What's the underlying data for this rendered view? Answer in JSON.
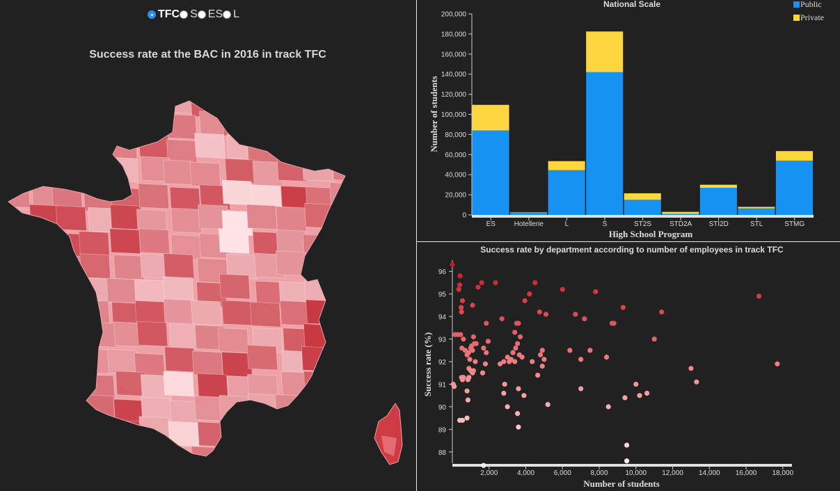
{
  "track_selector": {
    "options": [
      {
        "label": "TFC",
        "selected": true
      },
      {
        "label": "S",
        "selected": false
      },
      {
        "label": "ES",
        "selected": false
      },
      {
        "label": "L",
        "selected": false
      }
    ]
  },
  "map": {
    "title": "Success rate at the BAC in 2016 in track TFC",
    "color_scale": {
      "low": "#ffe6e9",
      "high": "#be1a25"
    }
  },
  "chart_data": [
    {
      "type": "bar",
      "stacked": true,
      "title": "National Scale",
      "xlabel": "High School Program",
      "ylabel": "Number of students",
      "ylim": [
        0,
        200000
      ],
      "yticks": [
        "0",
        "20,000",
        "40,000",
        "60,000",
        "80,000",
        "100,000",
        "120,000",
        "140,000",
        "160,000",
        "180,000",
        "200,000"
      ],
      "categories": [
        "ES",
        "Hotellerie",
        "L",
        "S",
        "ST2S",
        "STD2A",
        "STI2D",
        "STL",
        "STMG"
      ],
      "series": [
        {
          "name": "Public",
          "color": "#1692f3",
          "values": [
            84000,
            2000,
            44500,
            142000,
            15000,
            1000,
            27000,
            6500,
            54000
          ]
        },
        {
          "name": "Private",
          "color": "#fed640",
          "values": [
            25500,
            500,
            9000,
            40500,
            6500,
            2000,
            3000,
            1500,
            9500
          ]
        }
      ],
      "legend_position": "top-right"
    },
    {
      "type": "scatter",
      "title": "Success rate by department according to number of employees in track TFC",
      "xlabel": "Number of students",
      "ylabel": "Success rate (%)",
      "xlim": [
        0,
        18500
      ],
      "ylim": [
        87.5,
        96.5
      ],
      "xticks": [
        "2,000",
        "4,000",
        "6,000",
        "8,000",
        "10,000",
        "12,000",
        "14,000",
        "16,000",
        "18,000"
      ],
      "yticks": [
        "88",
        "89",
        "90",
        "91",
        "92",
        "93",
        "94",
        "95",
        "96"
      ],
      "points": [
        [
          0,
          96.3
        ],
        [
          350,
          95.2
        ],
        [
          400,
          95.4
        ],
        [
          420,
          95.8
        ],
        [
          480,
          94.4
        ],
        [
          500,
          94.2
        ],
        [
          550,
          94.7
        ],
        [
          300,
          93.2
        ],
        [
          150,
          93.2
        ],
        [
          450,
          93.2
        ],
        [
          600,
          93.0
        ],
        [
          520,
          92.6
        ],
        [
          700,
          92.5
        ],
        [
          800,
          92.3
        ],
        [
          880,
          92.4
        ],
        [
          950,
          92.1
        ],
        [
          1000,
          92.6
        ],
        [
          1050,
          92.7
        ],
        [
          1200,
          92.8
        ],
        [
          1300,
          92.8
        ],
        [
          1150,
          93.1
        ],
        [
          1100,
          92.5
        ],
        [
          1250,
          92.0
        ],
        [
          900,
          91.7
        ],
        [
          1000,
          91.6
        ],
        [
          1100,
          91.5
        ],
        [
          1150,
          91.6
        ],
        [
          900,
          91.3
        ],
        [
          850,
          91.2
        ],
        [
          600,
          91.3
        ],
        [
          550,
          91.2
        ],
        [
          500,
          91.3
        ],
        [
          100,
          90.9
        ],
        [
          50,
          91.0
        ],
        [
          800,
          90.7
        ],
        [
          850,
          90.3
        ],
        [
          400,
          89.4
        ],
        [
          550,
          89.4
        ],
        [
          800,
          89.5
        ],
        [
          1600,
          95.5
        ],
        [
          1400,
          95.3
        ],
        [
          1100,
          94.5
        ],
        [
          1850,
          93.7
        ],
        [
          1950,
          92.9
        ],
        [
          1850,
          92.4
        ],
        [
          1700,
          92.6
        ],
        [
          1800,
          91.9
        ],
        [
          1650,
          91.5
        ],
        [
          2350,
          95.5
        ],
        [
          2700,
          93.9
        ],
        [
          2600,
          91.9
        ],
        [
          2850,
          91.0
        ],
        [
          2800,
          90.6
        ],
        [
          3000,
          90.0
        ],
        [
          2800,
          92.0
        ],
        [
          3100,
          92.0
        ],
        [
          3000,
          92.2
        ],
        [
          3300,
          92.4
        ],
        [
          3450,
          92.6
        ],
        [
          3500,
          93.7
        ],
        [
          3600,
          93.7
        ],
        [
          3400,
          93.3
        ],
        [
          3700,
          93.1
        ],
        [
          3550,
          92.8
        ],
        [
          3650,
          92.3
        ],
        [
          3800,
          92.2
        ],
        [
          3200,
          92.1
        ],
        [
          3400,
          92.0
        ],
        [
          3600,
          90.8
        ],
        [
          3900,
          90.5
        ],
        [
          3550,
          89.7
        ],
        [
          3600,
          89.1
        ],
        [
          3950,
          94.7
        ],
        [
          4200,
          95.0
        ],
        [
          4500,
          95.5
        ],
        [
          4750,
          94.2
        ],
        [
          5100,
          94.1
        ],
        [
          4350,
          92.0
        ],
        [
          4650,
          91.4
        ],
        [
          4800,
          92.3
        ],
        [
          4900,
          92.5
        ],
        [
          5000,
          92.1
        ],
        [
          4900,
          91.8
        ],
        [
          5200,
          90.1
        ],
        [
          6000,
          95.2
        ],
        [
          6700,
          94.1
        ],
        [
          6400,
          92.5
        ],
        [
          7000,
          92.1
        ],
        [
          7000,
          90.8
        ],
        [
          7200,
          93.9
        ],
        [
          7500,
          92.5
        ],
        [
          7800,
          95.1
        ],
        [
          8400,
          92.2
        ],
        [
          8700,
          93.7
        ],
        [
          8800,
          93.7
        ],
        [
          8500,
          90.0
        ],
        [
          9300,
          94.4
        ],
        [
          9400,
          90.4
        ],
        [
          9500,
          88.3
        ],
        [
          9500,
          87.6
        ],
        [
          10000,
          91.0
        ],
        [
          10200,
          90.5
        ],
        [
          10600,
          90.6
        ],
        [
          11000,
          93.0
        ],
        [
          11400,
          94.2
        ],
        [
          13000,
          91.7
        ],
        [
          13300,
          91.1
        ],
        [
          16700,
          94.9
        ],
        [
          17700,
          91.9
        ],
        [
          1700,
          87.4
        ]
      ]
    }
  ]
}
